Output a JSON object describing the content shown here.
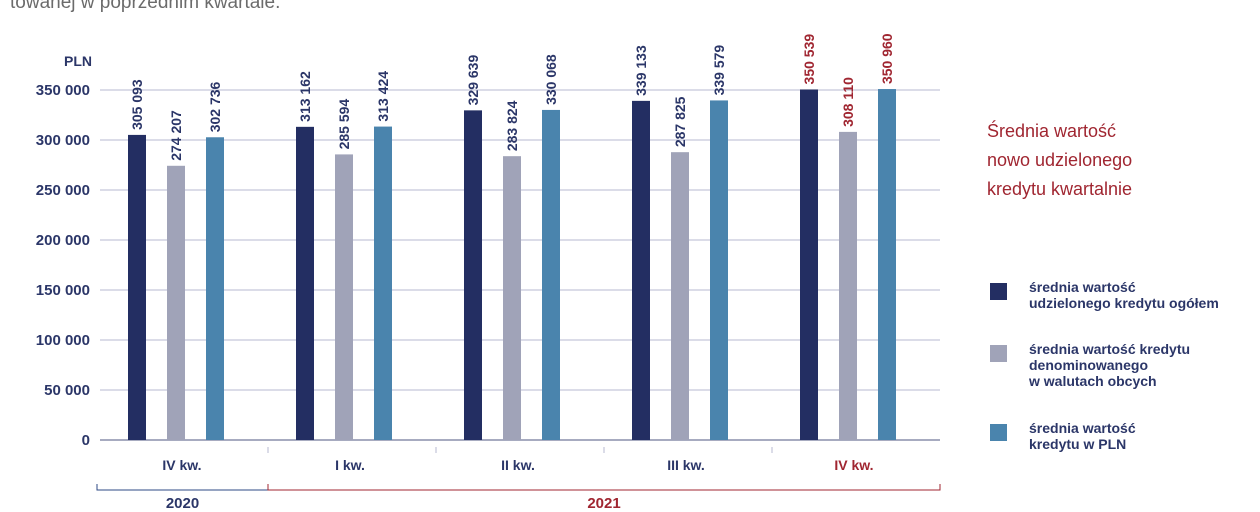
{
  "intro_text": "towanej w poprzednim kwartale.",
  "chart_data": {
    "type": "bar",
    "title": "Średnia wartość\nnowo udzielonego\nkredytu kwartalnie",
    "ylabel": "PLN",
    "ylim": [
      0,
      350000
    ],
    "yticks": [
      0,
      50000,
      100000,
      150000,
      200000,
      250000,
      300000,
      350000
    ],
    "ytick_labels": [
      "0",
      "50 000",
      "100 000",
      "150 000",
      "200 000",
      "250 000",
      "300 000",
      "350 000"
    ],
    "grid": true,
    "legend_position": "right",
    "categories": [
      "IV kw.",
      "I kw.",
      "II kw.",
      "III kw.",
      "IV kw."
    ],
    "year_groups": [
      {
        "label": "2020",
        "start": 0,
        "end": 0
      },
      {
        "label": "2021",
        "start": 1,
        "end": 4
      }
    ],
    "series": [
      {
        "name": "średnia wartość\nudzielonego kredytu ogółem",
        "color": "#232e62",
        "values": [
          305093,
          313162,
          329639,
          339133,
          350539
        ],
        "value_labels": [
          "305 093",
          "313 162",
          "329 639",
          "339 133",
          "350 539"
        ]
      },
      {
        "name": "średnia wartość kredytu\ndenominowanego\nw walutach obcych",
        "color": "#a0a3b8",
        "values": [
          274207,
          285594,
          283824,
          287825,
          308110
        ],
        "value_labels": [
          "274 207",
          "285 594",
          "283 824",
          "287 825",
          "308 110"
        ]
      },
      {
        "name": "średnia wartość\nkredytu w PLN",
        "color": "#4a84ad",
        "values": [
          302736,
          313424,
          330068,
          339579,
          350960
        ],
        "value_labels": [
          "302 736",
          "313 424",
          "330 068",
          "339 579",
          "350 960"
        ]
      }
    ],
    "colors": {
      "text": "#2b3668",
      "highlight": "#a02631",
      "grid": "#b7bad0",
      "axis": "#8a8fab",
      "year_2020_bracket": "#2e4a85",
      "year_2021_bracket": "#a02631"
    },
    "highlight_category_index": 4
  }
}
